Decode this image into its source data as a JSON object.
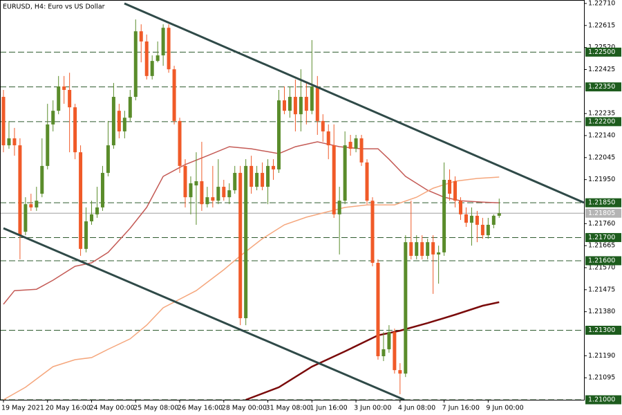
{
  "chart_data": {
    "type": "candlestick",
    "title": "EURUSD, H4:  Euro vs US Dollar",
    "categories": [
      "19 May 2021",
      null,
      null,
      null,
      null,
      null,
      null,
      null,
      "20 May 16:00",
      null,
      null,
      null,
      null,
      null,
      null,
      null,
      "24 May 00:00",
      null,
      null,
      null,
      null,
      null,
      null,
      null,
      "25 May 08:00",
      null,
      null,
      null,
      null,
      null,
      null,
      null,
      "26 May 16:00",
      null,
      null,
      null,
      null,
      null,
      null,
      null,
      "28 May 00:00",
      null,
      null,
      null,
      null,
      null,
      null,
      null,
      "31 May 08:00",
      null,
      null,
      null,
      null,
      null,
      null,
      null,
      "1 Jun 16:00",
      null,
      null,
      null,
      null,
      null,
      null,
      null,
      "3 Jun 00:00",
      null,
      null,
      null,
      null,
      null,
      null,
      null,
      "4 Jun 08:00",
      null,
      null,
      null,
      null,
      null,
      null,
      null,
      "7 Jun 16:00",
      null,
      null,
      null,
      null,
      null,
      null,
      null,
      "9 Jun 00:00",
      null,
      null
    ],
    "open": [
      1.22307,
      1.22098,
      1.22128,
      1.22098,
      1.21725,
      1.21844,
      1.2183,
      1.21889,
      1.22009,
      1.22188,
      1.22247,
      1.22352,
      1.22337,
      1.22262,
      1.22068,
      1.21651,
      1.2177,
      1.218,
      1.2183,
      1.21979,
      1.22098,
      1.22247,
      1.22158,
      1.22217,
      1.22307,
      1.2259,
      1.22546,
      1.22397,
      1.22462,
      1.22486,
      1.22605,
      1.22426,
      1.22203,
      1.22009,
      1.21874,
      1.21925,
      1.21943,
      1.21844,
      1.21874,
      1.21859,
      1.21919,
      1.21874,
      1.21904,
      1.21979,
      1.21352,
      1.22009,
      1.21919,
      1.21979,
      1.21919,
      1.22009,
      1.21994,
      1.22292,
      1.22247,
      1.22307,
      1.22232,
      1.22307,
      1.22247,
      1.22352,
      1.22203,
      1.22158,
      1.22098,
      1.218,
      1.21859,
      1.22113,
      1.22083,
      1.22128,
      1.22024,
      1.21859,
      1.21591,
      1.21188,
      1.21218,
      1.21292,
      1.21128,
      1.21113,
      1.2168,
      1.21621,
      1.2168,
      1.21621,
      1.2168,
      1.21627,
      1.21636,
      1.21949,
      1.21943,
      1.21859,
      1.218,
      1.21764,
      1.21794,
      1.21755,
      1.2171,
      1.21755,
      1.21794
    ],
    "high": [
      1.22337,
      1.22203,
      1.22173,
      1.22128,
      1.21874,
      1.21889,
      1.21919,
      1.22128,
      1.22277,
      1.22292,
      1.22397,
      1.22397,
      1.22411,
      1.22277,
      1.22098,
      1.2183,
      1.21859,
      1.21919,
      1.22009,
      1.22203,
      1.22367,
      1.22277,
      1.22247,
      1.22337,
      1.22641,
      1.2262,
      1.22576,
      1.22486,
      1.22546,
      1.2262,
      1.2262,
      1.22441,
      1.22217,
      1.22038,
      1.21964,
      1.22068,
      1.22113,
      1.21919,
      1.22009,
      1.22038,
      1.21949,
      1.21934,
      1.22009,
      1.22009,
      1.22038,
      1.22053,
      1.22009,
      1.22024,
      1.22038,
      1.22038,
      1.22337,
      1.22352,
      1.22352,
      1.22382,
      1.22426,
      1.22367,
      1.22552,
      1.22397,
      1.22232,
      1.22188,
      1.22188,
      1.21919,
      1.22158,
      1.22143,
      1.22143,
      1.22143,
      1.22038,
      1.21874,
      1.21606,
      1.21292,
      1.21322,
      1.21307,
      1.21158,
      1.2171,
      1.21859,
      1.2171,
      1.2171,
      1.21695,
      1.2171,
      1.21665,
      1.22024,
      1.21994,
      1.21964,
      1.21874,
      1.2183,
      1.2183,
      1.21815,
      1.21785,
      1.21785,
      1.218,
      1.21868
    ],
    "low": [
      1.22068,
      1.22083,
      1.22053,
      1.21606,
      1.2171,
      1.21815,
      1.21815,
      1.21874,
      1.21994,
      1.22158,
      1.22232,
      1.22277,
      1.22068,
      1.22038,
      1.21621,
      1.21636,
      1.21755,
      1.21785,
      1.21815,
      1.21964,
      1.22083,
      1.22128,
      1.22128,
      1.22203,
      1.22292,
      1.22456,
      1.22382,
      1.22382,
      1.22456,
      1.22441,
      1.22411,
      1.22188,
      1.21979,
      1.2183,
      1.218,
      1.21755,
      1.21815,
      1.2183,
      1.2183,
      1.21844,
      1.21859,
      1.21844,
      1.21889,
      1.21322,
      1.21322,
      1.21889,
      1.21904,
      1.21904,
      1.21844,
      1.21949,
      1.21979,
      1.22232,
      1.22217,
      1.22158,
      1.22158,
      1.22188,
      1.22232,
      1.22143,
      1.22113,
      1.22038,
      1.21785,
      1.21627,
      1.21844,
      1.22053,
      1.22068,
      1.22009,
      1.21844,
      1.21576,
      1.21173,
      1.21167,
      1.21203,
      1.21113,
      1.21024,
      1.21098,
      1.21606,
      1.21606,
      1.21606,
      1.21606,
      1.21457,
      1.21501,
      1.21621,
      1.21859,
      1.2183,
      1.21776,
      1.21746,
      1.21665,
      1.2168,
      1.21695,
      1.21695,
      1.2174,
      1.21785
    ],
    "close": [
      1.22098,
      1.22128,
      1.22098,
      1.2171,
      1.21844,
      1.2183,
      1.21859,
      1.22009,
      1.22188,
      1.22247,
      1.22352,
      1.22337,
      1.22262,
      1.22068,
      1.21651,
      1.2177,
      1.218,
      1.2183,
      1.21979,
      1.22098,
      1.22307,
      1.22158,
      1.22217,
      1.22307,
      1.2259,
      1.22546,
      1.22397,
      1.22462,
      1.22486,
      1.22605,
      1.22426,
      1.22203,
      1.22009,
      1.21874,
      1.21934,
      1.21943,
      1.21844,
      1.21874,
      1.21859,
      1.21919,
      1.21874,
      1.21904,
      1.21979,
      1.21352,
      1.22009,
      1.21919,
      1.21979,
      1.21919,
      1.22009,
      1.21994,
      1.22292,
      1.22247,
      1.22307,
      1.22232,
      1.22307,
      1.22247,
      1.22352,
      1.22203,
      1.22158,
      1.22098,
      1.218,
      1.21859,
      1.22098,
      1.22083,
      1.22128,
      1.22024,
      1.21859,
      1.21591,
      1.21188,
      1.21218,
      1.21292,
      1.21128,
      1.21113,
      1.2168,
      1.21621,
      1.2168,
      1.21621,
      1.2168,
      1.21627,
      1.21636,
      1.21949,
      1.21889,
      1.21859,
      1.218,
      1.21764,
      1.21794,
      1.21755,
      1.2171,
      1.21755,
      1.21794,
      1.21805
    ],
    "up_color": "#5a8c2b",
    "down_color": "#f05a28",
    "series": [
      {
        "color": "#c45a55",
        "x": [
          0,
          2,
          6,
          9,
          13,
          16,
          19,
          23,
          26,
          29,
          33,
          37,
          41,
          45,
          50,
          53,
          57,
          61,
          65,
          68,
          70,
          73,
          77,
          80,
          83,
          87,
          90
        ],
        "values": [
          1.21412,
          1.21471,
          1.21477,
          1.21516,
          1.21576,
          1.21591,
          1.21636,
          1.2174,
          1.2183,
          1.21964,
          1.22015,
          1.22053,
          1.22092,
          1.22083,
          1.22062,
          1.22092,
          1.22113,
          1.22092,
          1.22083,
          1.22083,
          1.22038,
          1.21964,
          1.21904,
          1.21874,
          1.21859,
          1.21853,
          1.2185
        ]
      },
      {
        "color": "#f5a67c",
        "x": [
          0,
          4,
          9,
          13,
          16,
          19,
          23,
          26,
          29,
          35,
          40,
          43,
          47,
          51,
          55,
          58,
          62,
          66,
          71,
          75,
          78,
          82,
          86,
          90
        ],
        "values": [
          1.21,
          1.21054,
          1.21143,
          1.21173,
          1.21182,
          1.21218,
          1.21263,
          1.21322,
          1.21397,
          1.21471,
          1.21561,
          1.21621,
          1.21695,
          1.21755,
          1.21788,
          1.21806,
          1.2183,
          1.21841,
          1.21841,
          1.21874,
          1.21913,
          1.21943,
          1.21955,
          1.21961
        ]
      },
      {
        "color": "#7a0a0a",
        "x": [
          44,
          50,
          56,
          62,
          68,
          72,
          77,
          82,
          87,
          90
        ],
        "values": [
          1.21,
          1.21054,
          1.21143,
          1.21209,
          1.21278,
          1.21298,
          1.21331,
          1.21367,
          1.21406,
          1.21421
        ]
      }
    ],
    "ylim": [
      1.21,
      1.2271
    ],
    "yticks": [
      {
        "value": 1.2271,
        "label": "1.22710"
      },
      1.22615,
      {
        "value": 1.2252,
        "label": "1.22520"
      },
      1.22425,
      1.22235,
      {
        "value": 1.2214,
        "label": "1.22140"
      },
      1.22045,
      {
        "value": 1.2195,
        "label": "1.21950"
      },
      {
        "value": 1.2176,
        "label": "1.21760"
      },
      1.21665,
      {
        "value": 1.2157,
        "label": "1.21570"
      },
      1.21475,
      {
        "value": 1.2138,
        "label": "1.21380"
      },
      {
        "value": 1.2119,
        "label": "1.21190"
      },
      1.21095
    ],
    "levels": [
      {
        "value": 1.225,
        "label": "1.22500"
      },
      {
        "value": 1.2235,
        "label": "1.22350"
      },
      {
        "value": 1.222,
        "label": "1.22200"
      },
      {
        "value": 1.2185,
        "label": "1.21850"
      },
      {
        "value": 1.217,
        "label": "1.21700"
      },
      {
        "value": 1.216,
        "label": "1.21600"
      },
      {
        "value": 1.213,
        "label": "1.21300"
      },
      {
        "value": 1.21,
        "label": "1.21000"
      }
    ],
    "last_price": {
      "value": 1.21805,
      "label": "1.21805"
    }
  }
}
